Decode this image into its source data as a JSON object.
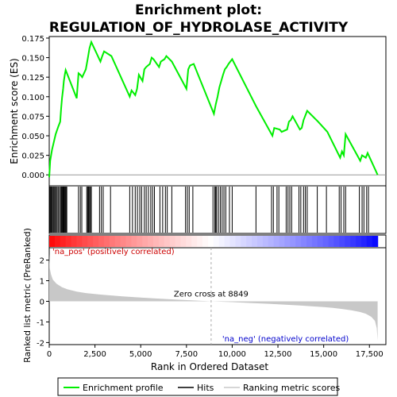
{
  "title_line1": "Enrichment plot:",
  "title_line2": "REGULATION_OF_HYDROLASE_ACTIVITY",
  "colors": {
    "profile": "#00ee00",
    "hits": "#000000",
    "metric_fill": "#c8c8c8",
    "pos_band": "#ff0000",
    "neg_band": "#0000ff",
    "pos_label": "#cc0000",
    "neg_label": "#0000cc",
    "zero_line": "#aaaaaa"
  },
  "legend": {
    "profile": "Enrichment profile",
    "hits": "Hits",
    "metric": "Ranking metric scores"
  },
  "chart_data": {
    "type": "line",
    "xlabel": "Rank in Ordered Dataset",
    "ylabel_top": "Enrichment score (ES)",
    "ylabel_bottom": "Ranked list metric (PreRanked)",
    "xlim": [
      0,
      18400
    ],
    "xticks": [
      0,
      2500,
      5000,
      7500,
      10000,
      12500,
      15000,
      17500
    ],
    "xtick_labels": [
      "0",
      "2,500",
      "5,000",
      "7,500",
      "10,000",
      "12,500",
      "15,000",
      "17,500"
    ],
    "es_ylim": [
      -0.014,
      0.177
    ],
    "es_yticks": [
      0.0,
      0.025,
      0.05,
      0.075,
      0.1,
      0.125,
      0.15,
      0.175
    ],
    "es_ytick_labels": [
      "0.000",
      "0.025",
      "0.050",
      "0.075",
      "0.100",
      "0.125",
      "0.150",
      "0.175"
    ],
    "metric_ylim": [
      -2.1,
      2.6
    ],
    "metric_yticks": [
      -2,
      -1,
      0,
      1,
      2
    ],
    "metric_ytick_labels": [
      "-2",
      "-1",
      "0",
      "1",
      "2"
    ],
    "n_genes": 17950,
    "zero_cross": 8849,
    "zero_cross_label": "Zero cross at 8849",
    "pos_label": "'na_pos' (positively correlated)",
    "neg_label": "'na_neg' (negatively correlated)",
    "metric_curve": {
      "rank": [
        0,
        30,
        100,
        200,
        400,
        700,
        1000,
        1500,
        2000,
        3000,
        4000,
        5000,
        6000,
        7000,
        8000,
        8849,
        10000,
        11000,
        12000,
        13000,
        14000,
        15000,
        15500,
        16000,
        16500,
        17000,
        17300,
        17600,
        17800,
        17900,
        17950
      ],
      "value": [
        2.3,
        1.6,
        1.3,
        1.05,
        0.85,
        0.68,
        0.58,
        0.47,
        0.4,
        0.31,
        0.24,
        0.18,
        0.13,
        0.08,
        0.04,
        0.0,
        -0.04,
        -0.08,
        -0.12,
        -0.17,
        -0.22,
        -0.28,
        -0.32,
        -0.37,
        -0.43,
        -0.52,
        -0.6,
        -0.75,
        -0.95,
        -1.3,
        -1.9
      ]
    },
    "es_profile": {
      "rank": [
        0,
        50,
        150,
        250,
        350,
        500,
        600,
        650,
        700,
        760,
        800,
        850,
        900,
        1500,
        1600,
        1700,
        1800,
        2000,
        2100,
        2200,
        2300,
        2800,
        2900,
        3000,
        3400,
        4400,
        4500,
        4700,
        4800,
        4900,
        5100,
        5200,
        5300,
        5500,
        5600,
        5700,
        6000,
        6100,
        6300,
        6400,
        6700,
        7500,
        7600,
        7700,
        7900,
        9000,
        9100,
        9200,
        9300,
        9400,
        9500,
        9600,
        9700,
        9800,
        9900,
        10000,
        11300,
        12200,
        12300,
        12600,
        12700,
        13000,
        13100,
        13200,
        13300,
        13700,
        13800,
        13900,
        14100,
        14700,
        15200,
        15900,
        16000,
        16100,
        16200,
        17000,
        17100,
        17300,
        17400,
        17950
      ],
      "es": [
        -0.003,
        0.018,
        0.032,
        0.042,
        0.052,
        0.062,
        0.068,
        0.085,
        0.098,
        0.11,
        0.12,
        0.128,
        0.134,
        0.098,
        0.13,
        0.128,
        0.125,
        0.135,
        0.148,
        0.162,
        0.17,
        0.145,
        0.152,
        0.158,
        0.152,
        0.1,
        0.108,
        0.102,
        0.11,
        0.128,
        0.12,
        0.135,
        0.138,
        0.142,
        0.15,
        0.148,
        0.138,
        0.145,
        0.148,
        0.152,
        0.145,
        0.11,
        0.135,
        0.14,
        0.142,
        0.078,
        0.09,
        0.1,
        0.112,
        0.12,
        0.128,
        0.135,
        0.138,
        0.142,
        0.145,
        0.148,
        0.088,
        0.05,
        0.06,
        0.058,
        0.055,
        0.058,
        0.068,
        0.07,
        0.075,
        0.058,
        0.06,
        0.07,
        0.082,
        0.068,
        0.055,
        0.022,
        0.03,
        0.025,
        0.052,
        0.018,
        0.025,
        0.022,
        0.028,
        0.0
      ]
    },
    "hits": [
      30,
      60,
      110,
      160,
      210,
      260,
      310,
      370,
      430,
      490,
      560,
      620,
      670,
      720,
      760,
      800,
      840,
      880,
      920,
      960,
      1600,
      1700,
      1780,
      2050,
      2100,
      2150,
      2200,
      2250,
      2300,
      2750,
      2850,
      2950,
      3350,
      4400,
      4550,
      4700,
      4820,
      4950,
      5050,
      5200,
      5300,
      5420,
      5550,
      5650,
      5750,
      6050,
      6200,
      6350,
      6450,
      6700,
      7450,
      7550,
      7650,
      7850,
      8950,
      9050,
      9100,
      9150,
      9250,
      9350,
      9450,
      9550,
      9650,
      9850,
      10000,
      11300,
      12150,
      12250,
      12450,
      12550,
      12950,
      13050,
      13150,
      13250,
      13650,
      13750,
      13900,
      14000,
      14100,
      14650,
      15150,
      15850,
      15950,
      16100,
      16200,
      16950,
      17100,
      17200,
      17350,
      17450
    ]
  }
}
